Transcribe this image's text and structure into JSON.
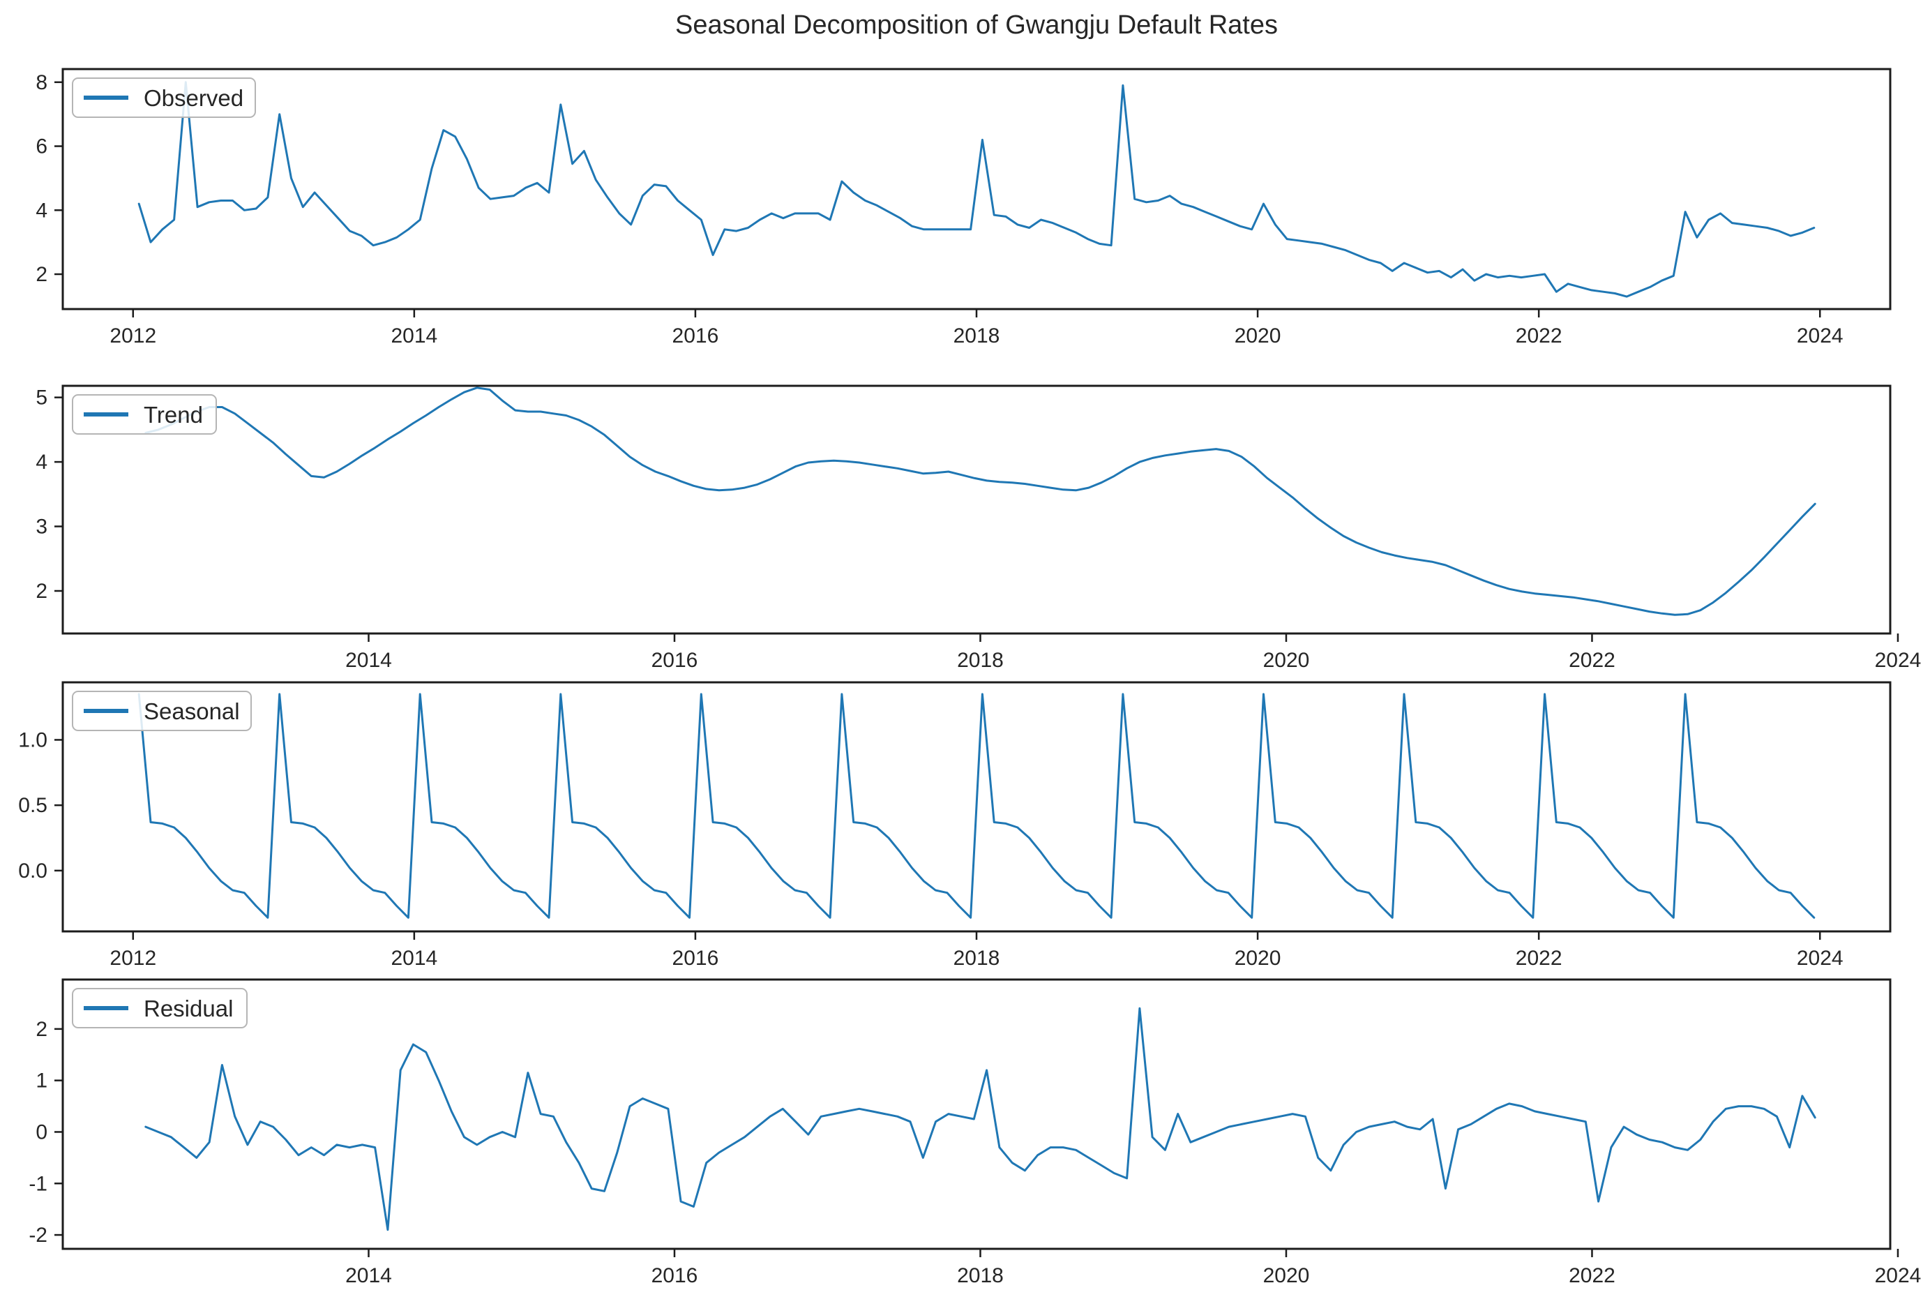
{
  "title": "Seasonal Decomposition of Gwangju Default Rates",
  "colors": {
    "line": "#1f77b4",
    "axis": "#1c1c1c",
    "tick_text": "#262626",
    "legend_border": "#b5b5b5",
    "legend_bg_alpha": 0.85
  },
  "chart_data": [
    {
      "type": "line",
      "name": "observed",
      "legend": "Observed",
      "freq": "monthly",
      "start": "2012-01",
      "start_year": 2012.0,
      "xlim": [
        2011.5,
        2024.5
      ],
      "ylim": [
        0.91,
        8.41
      ],
      "xticks": {
        "values": [
          2012,
          2014,
          2016,
          2018,
          2020,
          2022,
          2024
        ],
        "labels": [
          "2012",
          "2014",
          "2016",
          "2018",
          "2020",
          "2022",
          "2024"
        ]
      },
      "yticks": {
        "values": [
          2,
          4,
          6,
          8
        ],
        "labels": [
          "2",
          "4",
          "6",
          "8"
        ]
      },
      "grid": false,
      "legend_position": "upper-left",
      "values": [
        4.2,
        3.0,
        3.4,
        3.7,
        8.0,
        4.1,
        4.25,
        4.3,
        4.3,
        4.0,
        4.05,
        4.4,
        7.0,
        5.0,
        4.1,
        4.55,
        4.15,
        3.75,
        3.35,
        3.2,
        2.9,
        3.0,
        3.15,
        3.4,
        3.7,
        5.3,
        6.5,
        6.3,
        5.6,
        4.7,
        4.35,
        4.4,
        4.45,
        4.7,
        4.85,
        4.55,
        7.3,
        5.45,
        5.85,
        4.95,
        4.4,
        3.9,
        3.55,
        4.45,
        4.8,
        4.75,
        4.3,
        4.0,
        3.7,
        2.6,
        3.4,
        3.35,
        3.45,
        3.7,
        3.9,
        3.75,
        3.9,
        3.9,
        3.9,
        3.7,
        4.9,
        4.55,
        4.3,
        4.15,
        3.95,
        3.75,
        3.5,
        3.4,
        3.4,
        3.4,
        3.4,
        3.4,
        6.2,
        3.85,
        3.8,
        3.55,
        3.45,
        3.7,
        3.6,
        3.45,
        3.3,
        3.1,
        2.95,
        2.9,
        7.9,
        4.35,
        4.25,
        4.3,
        4.45,
        4.2,
        4.1,
        3.95,
        3.8,
        3.65,
        3.5,
        3.4,
        4.2,
        3.55,
        3.1,
        3.05,
        3.0,
        2.95,
        2.85,
        2.75,
        2.6,
        2.45,
        2.35,
        2.1,
        2.35,
        2.2,
        2.05,
        2.1,
        1.9,
        2.15,
        1.8,
        2.0,
        1.9,
        1.95,
        1.9,
        1.95,
        2.0,
        1.45,
        1.7,
        1.6,
        1.5,
        1.45,
        1.4,
        1.3,
        1.45,
        1.6,
        1.8,
        1.95,
        3.95,
        3.15,
        3.7,
        3.9,
        3.6,
        3.55,
        3.5,
        3.45,
        3.35,
        3.2,
        3.3,
        3.45
      ]
    },
    {
      "type": "line",
      "name": "trend",
      "legend": "Trend",
      "freq": "monthly",
      "start": "2012-07",
      "start_year": 2012.5,
      "xlim": [
        2012.0,
        2023.95
      ],
      "ylim": [
        1.34,
        5.18
      ],
      "xticks": {
        "values": [
          2014,
          2016,
          2018,
          2020,
          2022,
          2024
        ],
        "labels": [
          "2014",
          "2016",
          "2018",
          "2020",
          "2022",
          "2024"
        ]
      },
      "yticks": {
        "values": [
          2,
          3,
          4,
          5
        ],
        "labels": [
          "2",
          "3",
          "4",
          "5"
        ]
      },
      "grid": false,
      "legend_position": "upper-left",
      "values": [
        4.45,
        4.5,
        4.58,
        4.68,
        4.78,
        4.85,
        4.85,
        4.75,
        4.6,
        4.45,
        4.3,
        4.12,
        3.95,
        3.78,
        3.76,
        3.85,
        3.97,
        4.1,
        4.22,
        4.35,
        4.47,
        4.6,
        4.72,
        4.85,
        4.97,
        5.08,
        5.15,
        5.12,
        4.95,
        4.8,
        4.78,
        4.78,
        4.75,
        4.72,
        4.65,
        4.55,
        4.42,
        4.25,
        4.08,
        3.95,
        3.85,
        3.78,
        3.7,
        3.63,
        3.58,
        3.56,
        3.57,
        3.6,
        3.65,
        3.73,
        3.83,
        3.93,
        3.99,
        4.01,
        4.02,
        4.01,
        3.99,
        3.96,
        3.93,
        3.9,
        3.86,
        3.82,
        3.83,
        3.85,
        3.8,
        3.75,
        3.71,
        3.69,
        3.68,
        3.66,
        3.63,
        3.6,
        3.57,
        3.56,
        3.6,
        3.68,
        3.78,
        3.9,
        4.0,
        4.06,
        4.1,
        4.13,
        4.16,
        4.18,
        4.2,
        4.17,
        4.08,
        3.93,
        3.75,
        3.6,
        3.45,
        3.28,
        3.12,
        2.98,
        2.85,
        2.75,
        2.67,
        2.6,
        2.55,
        2.51,
        2.48,
        2.45,
        2.4,
        2.32,
        2.24,
        2.16,
        2.09,
        2.03,
        1.99,
        1.96,
        1.94,
        1.92,
        1.9,
        1.87,
        1.84,
        1.8,
        1.76,
        1.72,
        1.68,
        1.65,
        1.63,
        1.64,
        1.7,
        1.82,
        1.97,
        2.14,
        2.32,
        2.52,
        2.73,
        2.94,
        3.15,
        3.35
      ]
    },
    {
      "type": "line",
      "name": "seasonal",
      "legend": "Seasonal",
      "freq": "monthly",
      "start": "2012-01",
      "start_year": 2012.0,
      "xlim": [
        2011.5,
        2024.5
      ],
      "ylim": [
        -0.465,
        1.44
      ],
      "xticks": {
        "values": [
          2012,
          2014,
          2016,
          2018,
          2020,
          2022,
          2024
        ],
        "labels": [
          "2012",
          "2014",
          "2016",
          "2018",
          "2020",
          "2022",
          "2024"
        ]
      },
      "yticks": {
        "values": [
          0.0,
          0.5,
          1.0
        ],
        "labels": [
          "0.0",
          "0.5",
          "1.0"
        ]
      },
      "grid": false,
      "legend_position": "upper-left",
      "pattern_monthly_jan_to_dec": [
        1.35,
        0.37,
        0.36,
        0.33,
        0.25,
        0.14,
        0.02,
        -0.08,
        -0.15,
        -0.17,
        -0.27,
        -0.36
      ],
      "repeat_years": 12
    },
    {
      "type": "line",
      "name": "residual",
      "legend": "Residual",
      "freq": "monthly",
      "start": "2012-07",
      "start_year": 2012.5,
      "xlim": [
        2012.0,
        2023.95
      ],
      "ylim": [
        -2.27,
        2.96
      ],
      "xticks": {
        "values": [
          2014,
          2016,
          2018,
          2020,
          2022,
          2024
        ],
        "labels": [
          "2014",
          "2016",
          "2018",
          "2020",
          "2022",
          "2024"
        ]
      },
      "yticks": {
        "values": [
          -2,
          -1,
          0,
          1,
          2
        ],
        "labels": [
          "-2",
          "-1",
          "0",
          "1",
          "2"
        ]
      },
      "grid": false,
      "legend_position": "upper-left",
      "values": [
        0.1,
        0.0,
        -0.1,
        -0.3,
        -0.5,
        -0.2,
        1.3,
        0.3,
        -0.25,
        0.2,
        0.1,
        -0.15,
        -0.45,
        -0.3,
        -0.45,
        -0.25,
        -0.3,
        -0.25,
        -0.3,
        -1.9,
        1.2,
        1.7,
        1.55,
        1.0,
        0.4,
        -0.1,
        -0.25,
        -0.1,
        0.0,
        -0.1,
        1.15,
        0.35,
        0.3,
        -0.2,
        -0.6,
        -1.1,
        -1.15,
        -0.4,
        0.5,
        0.65,
        0.55,
        0.45,
        -1.35,
        -1.45,
        -0.6,
        -0.4,
        -0.25,
        -0.1,
        0.1,
        0.3,
        0.45,
        0.2,
        -0.05,
        0.3,
        0.35,
        0.4,
        0.45,
        0.4,
        0.35,
        0.3,
        0.2,
        -0.5,
        0.2,
        0.35,
        0.3,
        0.25,
        1.2,
        -0.3,
        -0.6,
        -0.75,
        -0.45,
        -0.3,
        -0.3,
        -0.35,
        -0.5,
        -0.65,
        -0.8,
        -0.9,
        2.4,
        -0.1,
        -0.35,
        0.35,
        -0.2,
        -0.1,
        0.0,
        0.1,
        0.15,
        0.2,
        0.25,
        0.3,
        0.35,
        0.3,
        -0.5,
        -0.75,
        -0.25,
        0.0,
        0.1,
        0.15,
        0.2,
        0.1,
        0.05,
        0.25,
        -1.1,
        0.05,
        0.15,
        0.3,
        0.45,
        0.55,
        0.5,
        0.4,
        0.35,
        0.3,
        0.25,
        0.2,
        -1.35,
        -0.3,
        0.1,
        -0.05,
        -0.15,
        -0.2,
        -0.3,
        -0.35,
        -0.15,
        0.2,
        0.45,
        0.5,
        0.5,
        0.45,
        0.3,
        -0.3,
        0.7,
        0.28
      ]
    }
  ]
}
